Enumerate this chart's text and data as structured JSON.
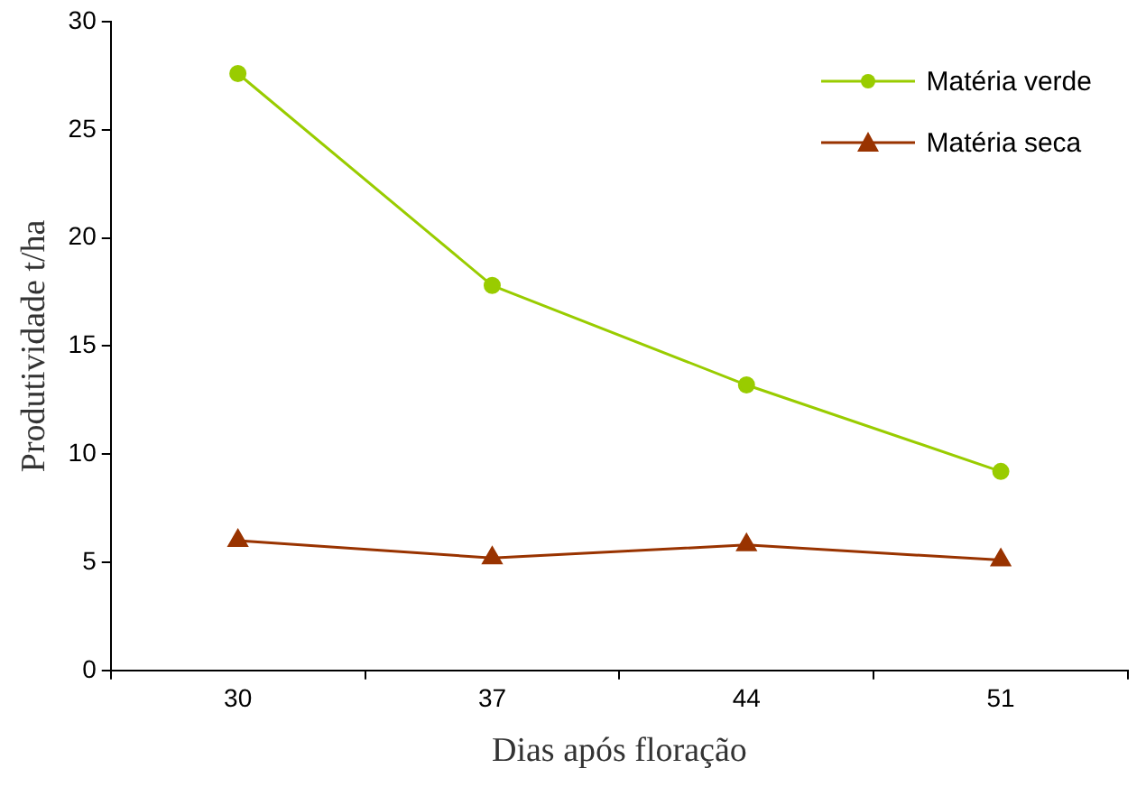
{
  "chart_data": {
    "type": "line",
    "xlabel": "Dias após floração",
    "ylabel": "Produtividade t/ha",
    "categories": [
      "30",
      "37",
      "44",
      "51"
    ],
    "series": [
      {
        "name": "Matéria verde",
        "color": "#99cc00",
        "marker": "circle",
        "values": [
          27.6,
          17.8,
          13.2,
          9.2
        ]
      },
      {
        "name": "Matéria seca",
        "color": "#993300",
        "marker": "triangle",
        "values": [
          6.0,
          5.2,
          5.8,
          5.1
        ]
      }
    ],
    "ylim": [
      0,
      30
    ],
    "yticks": [
      0,
      5,
      10,
      15,
      20,
      25,
      30
    ],
    "grid": false,
    "legend": "top right",
    "line_style": "solid"
  }
}
